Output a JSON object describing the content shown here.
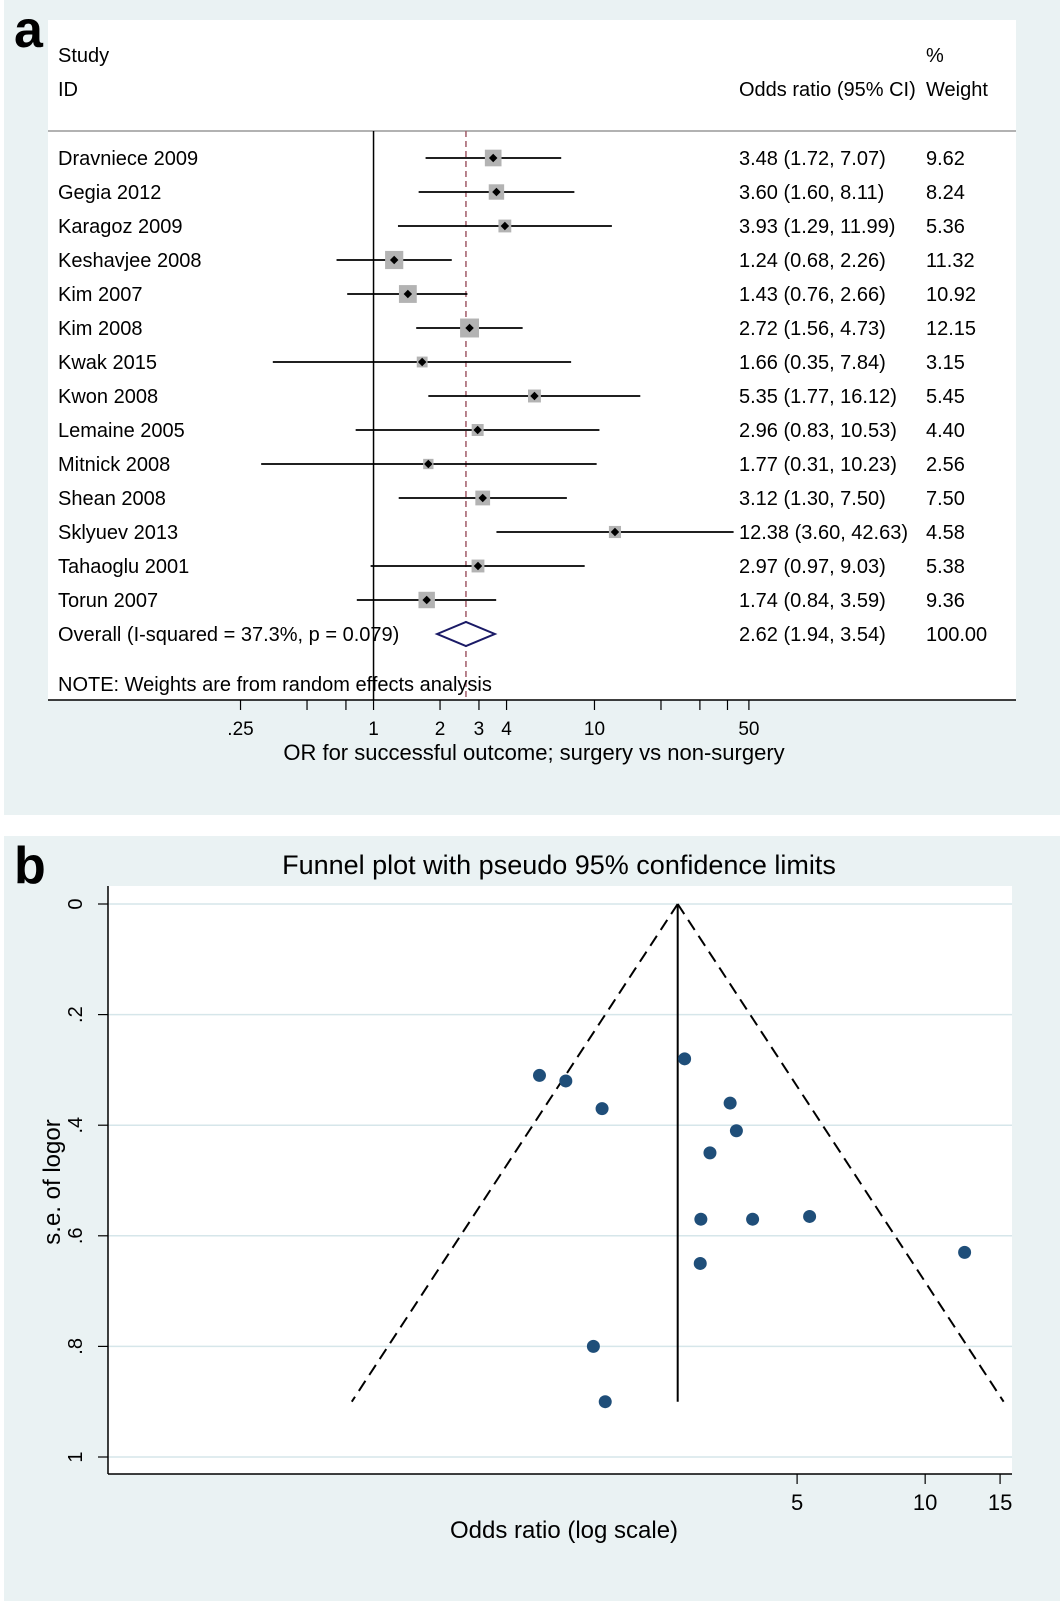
{
  "chart_data": [
    {
      "panel_label": "a",
      "type": "forest",
      "header": {
        "col_study_line1": "Study",
        "col_study_line2": "ID",
        "col_or": "Odds ratio (95% CI)",
        "col_weight_line1": "%",
        "col_weight_line2": "Weight"
      },
      "studies": [
        {
          "id": "Dravniece 2009",
          "or": 3.48,
          "lo": 1.72,
          "hi": 7.07,
          "weight": 9.62,
          "or_text": "3.48 (1.72, 7.07)",
          "weight_text": "9.62"
        },
        {
          "id": "Gegia 2012",
          "or": 3.6,
          "lo": 1.6,
          "hi": 8.11,
          "weight": 8.24,
          "or_text": "3.60 (1.60, 8.11)",
          "weight_text": "8.24"
        },
        {
          "id": "Karagoz 2009",
          "or": 3.93,
          "lo": 1.29,
          "hi": 11.99,
          "weight": 5.36,
          "or_text": "3.93 (1.29, 11.99)",
          "weight_text": "5.36"
        },
        {
          "id": "Keshavjee 2008",
          "or": 1.24,
          "lo": 0.68,
          "hi": 2.26,
          "weight": 11.32,
          "or_text": "1.24 (0.68, 2.26)",
          "weight_text": "11.32"
        },
        {
          "id": "Kim 2007",
          "or": 1.43,
          "lo": 0.76,
          "hi": 2.66,
          "weight": 10.92,
          "or_text": "1.43 (0.76, 2.66)",
          "weight_text": "10.92"
        },
        {
          "id": "Kim 2008",
          "or": 2.72,
          "lo": 1.56,
          "hi": 4.73,
          "weight": 12.15,
          "or_text": "2.72 (1.56, 4.73)",
          "weight_text": "12.15"
        },
        {
          "id": "Kwak 2015",
          "or": 1.66,
          "lo": 0.35,
          "hi": 7.84,
          "weight": 3.15,
          "or_text": "1.66 (0.35, 7.84)",
          "weight_text": "3.15"
        },
        {
          "id": "Kwon 2008",
          "or": 5.35,
          "lo": 1.77,
          "hi": 16.12,
          "weight": 5.45,
          "or_text": "5.35 (1.77, 16.12)",
          "weight_text": "5.45"
        },
        {
          "id": "Lemaine 2005",
          "or": 2.96,
          "lo": 0.83,
          "hi": 10.53,
          "weight": 4.4,
          "or_text": "2.96 (0.83, 10.53)",
          "weight_text": "4.40"
        },
        {
          "id": "Mitnick 2008",
          "or": 1.77,
          "lo": 0.31,
          "hi": 10.23,
          "weight": 2.56,
          "or_text": "1.77 (0.31, 10.23)",
          "weight_text": "2.56"
        },
        {
          "id": "Shean 2008",
          "or": 3.12,
          "lo": 1.3,
          "hi": 7.5,
          "weight": 7.5,
          "or_text": "3.12 (1.30, 7.50)",
          "weight_text": "7.50"
        },
        {
          "id": "Sklyuev 2013",
          "or": 12.38,
          "lo": 3.6,
          "hi": 42.63,
          "weight": 4.58,
          "or_text": "12.38 (3.60, 42.63)",
          "weight_text": "4.58"
        },
        {
          "id": "Tahaoglu 2001",
          "or": 2.97,
          "lo": 0.97,
          "hi": 9.03,
          "weight": 5.38,
          "or_text": "2.97 (0.97, 9.03)",
          "weight_text": "5.38"
        },
        {
          "id": "Torun 2007",
          "or": 1.74,
          "lo": 0.84,
          "hi": 3.59,
          "weight": 9.36,
          "or_text": "1.74 (0.84, 3.59)",
          "weight_text": "9.36"
        }
      ],
      "overall": {
        "label": "Overall  (I-squared = 37.3%, p = 0.079)",
        "or": 2.62,
        "lo": 1.94,
        "hi": 3.54,
        "or_text": "2.62 (1.94, 3.54)",
        "weight_text": "100.00"
      },
      "note": "NOTE: Weights are from random effects analysis",
      "xscale": "log",
      "xlim": [
        0.18,
        80
      ],
      "xticks": [
        {
          "value": 0.25,
          "label": ".25"
        },
        {
          "value": 1,
          "label": "1"
        },
        {
          "value": 2,
          "label": "2"
        },
        {
          "value": 3,
          "label": "3"
        },
        {
          "value": 4,
          "label": "4"
        },
        {
          "value": 10,
          "label": "10"
        },
        {
          "value": 50,
          "label": "50"
        }
      ],
      "xminor": [
        0.5,
        0.75,
        20,
        30,
        40
      ],
      "reference_line": 1,
      "xlabel": "OR for successful outcome; surgery vs non-surgery",
      "colors": {
        "box": "#b3b3b3",
        "diamond": "#1a1a66",
        "dashed_line": "#a05a68"
      }
    },
    {
      "panel_label": "b",
      "type": "scatter",
      "title": "Funnel plot with pseudo 95% confidence limits",
      "xlabel": "Odds ratio (log scale)",
      "ylabel": "s.e. of logor",
      "xscale": "log",
      "xlim": [
        0.12,
        16
      ],
      "xticks": [
        {
          "value": 5,
          "label": "5"
        },
        {
          "value": 10,
          "label": "10"
        },
        {
          "value": 15,
          "label": "15"
        }
      ],
      "yreversed": true,
      "ylim": [
        0,
        1
      ],
      "yticks": [
        {
          "value": 0,
          "label": "0"
        },
        {
          "value": 0.2,
          "label": ".2"
        },
        {
          "value": 0.4,
          "label": ".4"
        },
        {
          "value": 0.6,
          "label": ".6"
        },
        {
          "value": 0.8,
          "label": ".8"
        },
        {
          "value": 1,
          "label": "1"
        }
      ],
      "grid": true,
      "pooled_or": 2.62,
      "funnel_se_max": 0.9,
      "points": [
        {
          "or": 1.24,
          "se": 0.31
        },
        {
          "or": 1.43,
          "se": 0.32
        },
        {
          "or": 1.74,
          "se": 0.37
        },
        {
          "or": 2.72,
          "se": 0.28
        },
        {
          "or": 3.48,
          "se": 0.36
        },
        {
          "or": 3.6,
          "se": 0.41
        },
        {
          "or": 3.12,
          "se": 0.45
        },
        {
          "or": 2.97,
          "se": 0.57
        },
        {
          "or": 3.93,
          "se": 0.57
        },
        {
          "or": 5.35,
          "se": 0.565
        },
        {
          "or": 12.38,
          "se": 0.63
        },
        {
          "or": 2.96,
          "se": 0.65
        },
        {
          "or": 1.66,
          "se": 0.8
        },
        {
          "or": 1.77,
          "se": 0.9
        }
      ],
      "colors": {
        "point": "#1f4e79",
        "grid": "#d6e6ea"
      }
    }
  ]
}
